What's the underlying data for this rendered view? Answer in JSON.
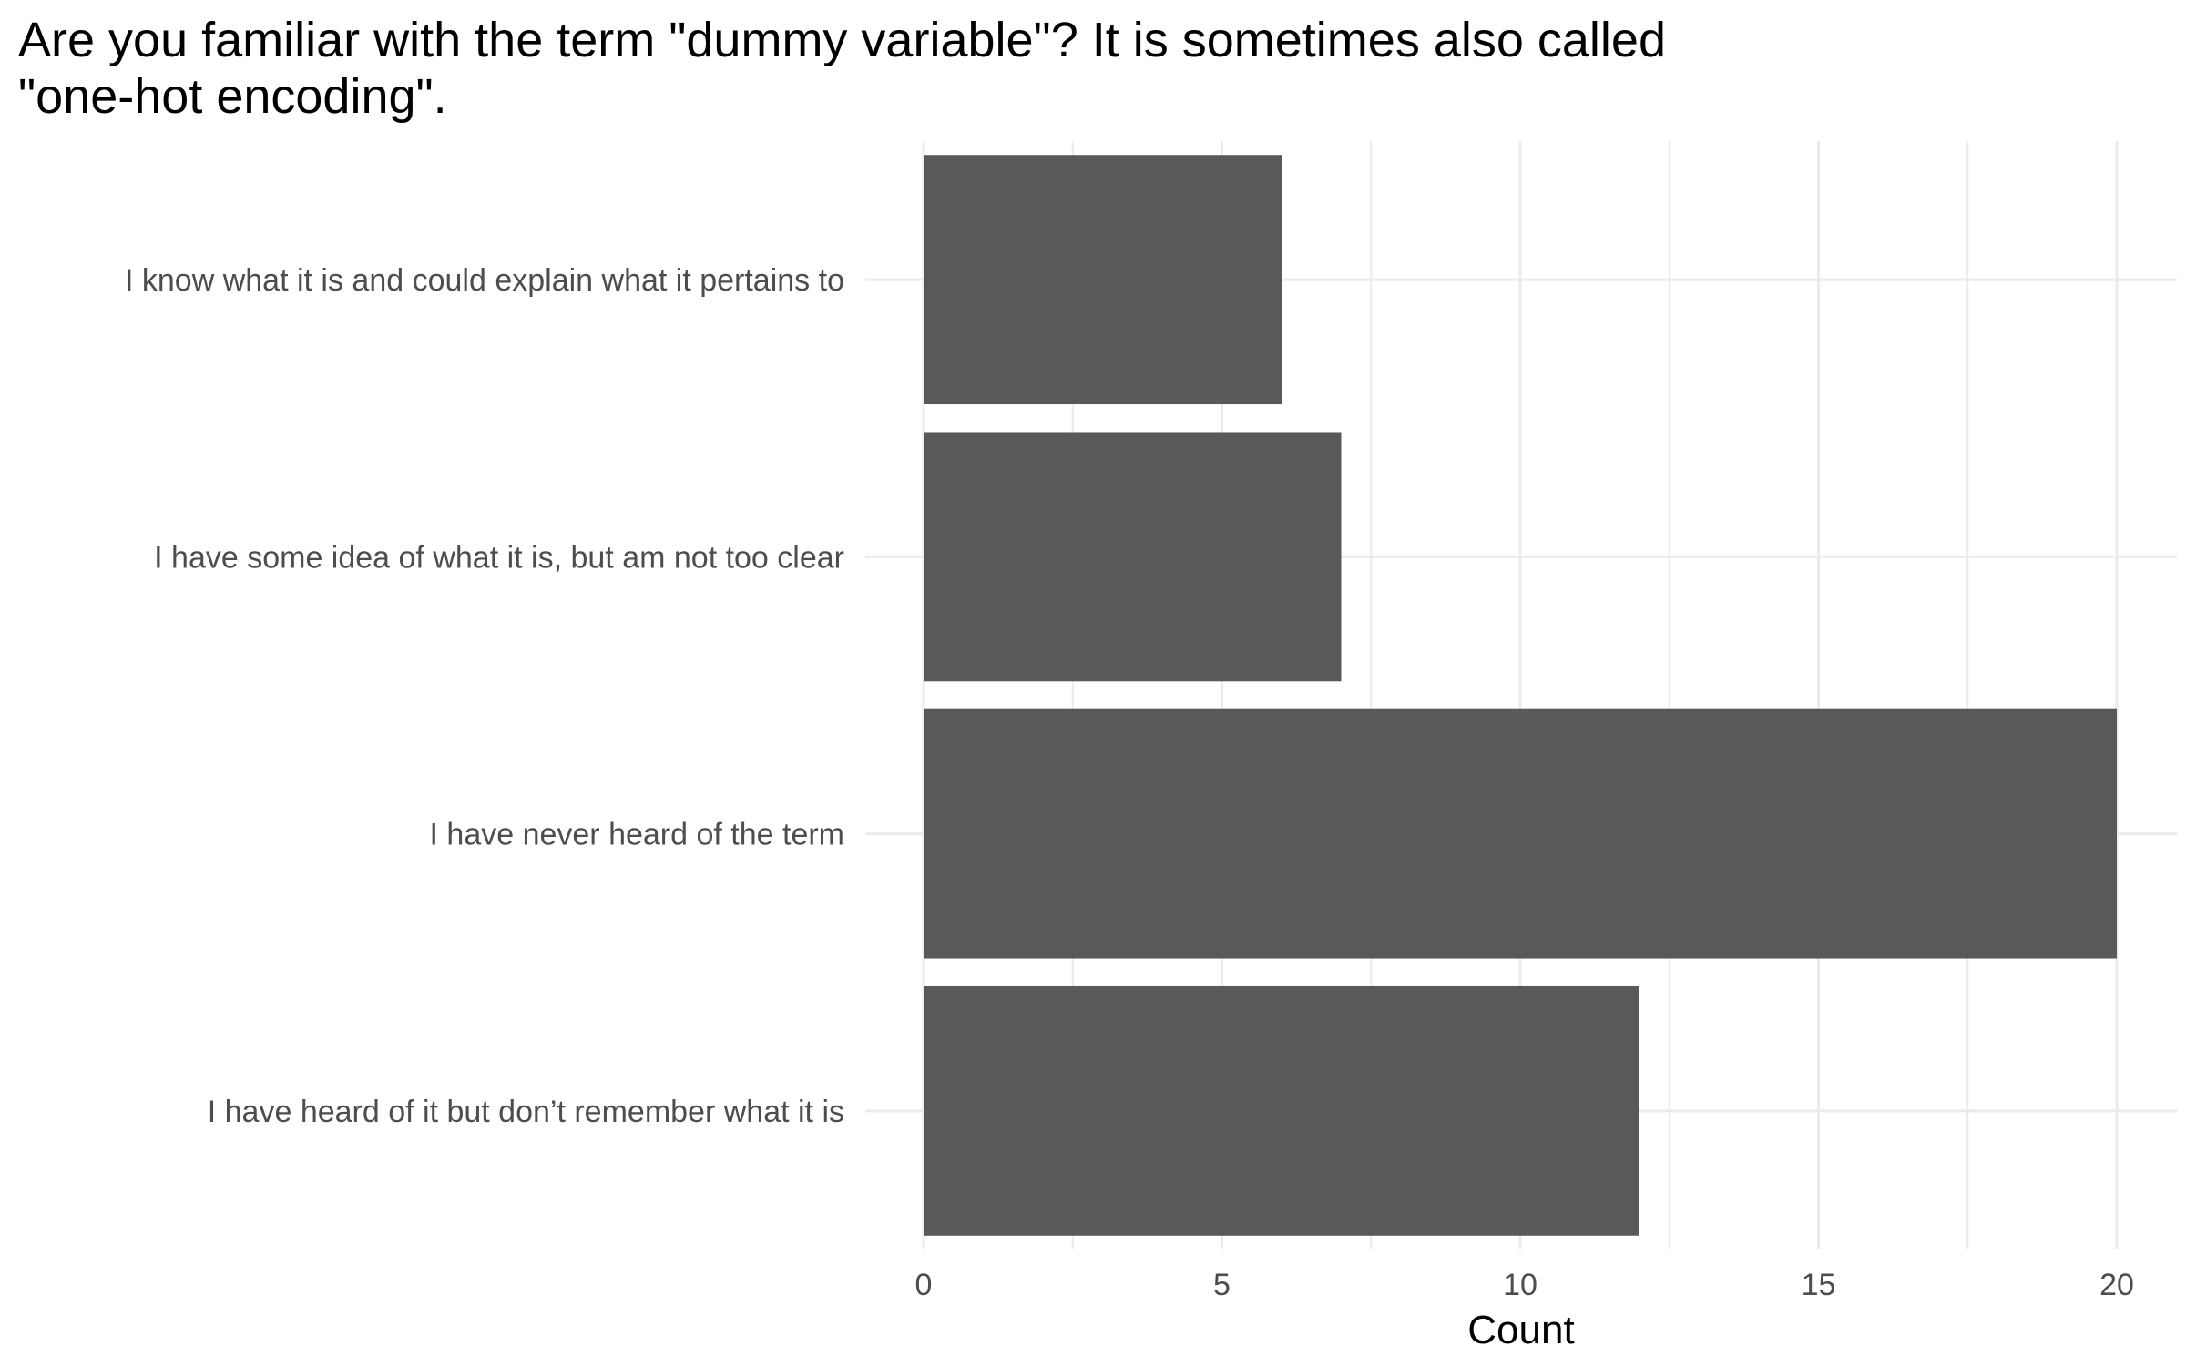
{
  "chart_data": {
    "type": "bar",
    "orientation": "horizontal",
    "title_lines": [
      "Are you familiar with the term \"dummy variable\"? It is sometimes also called",
      "\"one-hot encoding\"."
    ],
    "categories": [
      "I know what it is and could explain what it pertains to",
      "I have some idea of what it is, but am not too clear",
      "I have never heard of the term",
      "I have heard of it but don’t remember what it is"
    ],
    "values": [
      6,
      7,
      20,
      12
    ],
    "xlabel": "Count",
    "ylabel": "",
    "xlim": [
      0,
      21
    ],
    "x_ticks": [
      0,
      5,
      10,
      15,
      20
    ],
    "x_tick_labels": [
      "0",
      "5",
      "10",
      "15",
      "20"
    ],
    "grid": true,
    "bar_color": "#595959",
    "grid_color": "#ebebeb",
    "label_color": "#4d4d4d"
  }
}
